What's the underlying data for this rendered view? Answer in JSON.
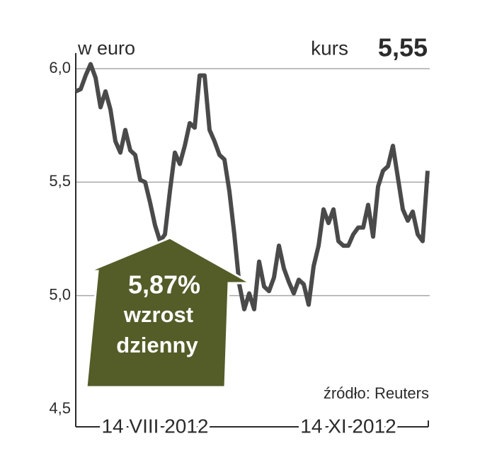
{
  "chart_data": {
    "type": "line",
    "unit_label": "w euro",
    "price_label": "kurs",
    "price": "5,55",
    "change": "5,87%",
    "change_text": [
      "wzrost",
      "dzienny"
    ],
    "source": "źródło: Reuters",
    "categories": [
      null,
      null,
      null,
      null,
      null,
      null,
      null,
      null,
      null,
      null,
      null,
      null,
      null,
      null,
      null,
      null,
      "14 VIII 2012",
      null,
      null,
      null,
      null,
      null,
      null,
      null,
      null,
      null,
      null,
      null,
      null,
      null,
      null,
      null,
      null,
      null,
      null,
      null,
      null,
      null,
      null,
      null,
      null,
      null,
      null,
      null,
      null,
      null,
      null,
      null,
      null,
      null,
      null,
      null,
      null,
      null,
      null,
      "14 XI 2012",
      null,
      null,
      null,
      null,
      null,
      null,
      null,
      null,
      null,
      null,
      null,
      null,
      null,
      null,
      null,
      null
    ],
    "series": [
      {
        "name": null,
        "color": "#4a4a4a",
        "values": [
          5.9,
          5.91,
          5.97,
          6.02,
          5.96,
          5.83,
          5.9,
          5.82,
          5.68,
          5.63,
          5.73,
          5.64,
          5.62,
          5.51,
          5.5,
          5.41,
          5.31,
          5.24,
          5.27,
          5.46,
          5.63,
          5.58,
          5.66,
          5.76,
          5.74,
          5.97,
          5.97,
          5.73,
          5.68,
          5.62,
          5.6,
          5.46,
          5.27,
          5.05,
          4.94,
          5.01,
          4.94,
          5.15,
          5.04,
          5.02,
          5.08,
          5.22,
          5.12,
          5.06,
          5.01,
          5.07,
          5.05,
          4.96,
          5.13,
          5.22,
          5.38,
          5.32,
          5.38,
          5.24,
          5.22,
          5.22,
          5.27,
          5.3,
          5.3,
          5.4,
          5.26,
          5.48,
          5.55,
          5.57,
          5.66,
          5.52,
          5.38,
          5.33,
          5.37,
          5.27,
          5.24,
          5.55
        ]
      }
    ],
    "ylim": [
      4.5,
      6.0
    ],
    "yticks": [
      {
        "value": 4.5,
        "label": "4,5"
      },
      {
        "value": 5.0,
        "label": "5,0"
      },
      {
        "value": 5.5,
        "label": "5,5"
      },
      {
        "value": 6.0,
        "label": "6,0"
      }
    ],
    "grid": true,
    "arrow_color": "#545c28"
  }
}
